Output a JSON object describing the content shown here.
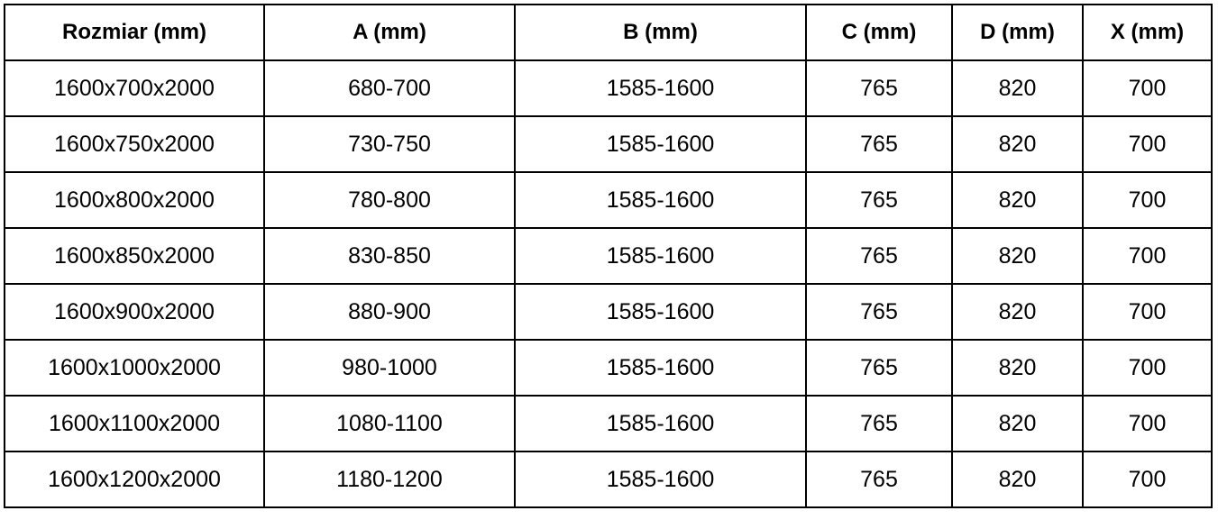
{
  "table": {
    "headers": [
      "Rozmiar (mm)",
      "A (mm)",
      "B (mm)",
      "C (mm)",
      "D (mm)",
      "X (mm)"
    ],
    "rows": [
      [
        "1600x700x2000",
        "680-700",
        "1585-1600",
        "765",
        "820",
        "700"
      ],
      [
        "1600x750x2000",
        "730-750",
        "1585-1600",
        "765",
        "820",
        "700"
      ],
      [
        "1600x800x2000",
        "780-800",
        "1585-1600",
        "765",
        "820",
        "700"
      ],
      [
        "1600x850x2000",
        "830-850",
        "1585-1600",
        "765",
        "820",
        "700"
      ],
      [
        "1600x900x2000",
        "880-900",
        "1585-1600",
        "765",
        "820",
        "700"
      ],
      [
        "1600x1000x2000",
        "980-1000",
        "1585-1600",
        "765",
        "820",
        "700"
      ],
      [
        "1600x1100x2000",
        "1080-1100",
        "1585-1600",
        "765",
        "820",
        "700"
      ],
      [
        "1600x1200x2000",
        "1180-1200",
        "1585-1600",
        "765",
        "820",
        "700"
      ]
    ]
  }
}
